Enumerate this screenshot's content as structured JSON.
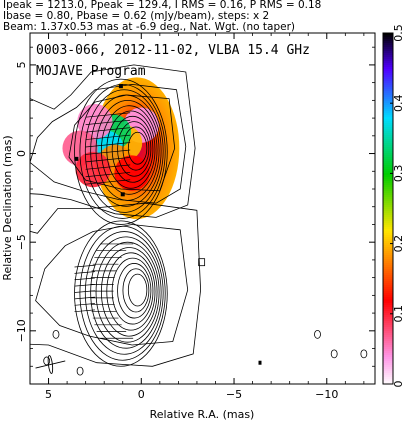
{
  "header": {
    "line1": "Ipeak = 1213.0, Ppeak = 129.4, I RMS = 0.16, P RMS = 0.18",
    "line2": "Ibase = 0.80, Pbase = 0.62 (mJy/beam), steps: x 2",
    "line3": "Beam: 1.37x0.53 mas at -6.9 deg., Nat. Wgt. (no taper)"
  },
  "chart_data": {
    "type": "heatmap",
    "title": "0003-066, 2012-11-02, VLBA 15.4 GHz",
    "subtitle": "MOJAVE Program",
    "xlabel": "Relative R.A. (mas)",
    "ylabel": "Relative Declination (mas)",
    "xlim": [
      6,
      -12.6
    ],
    "ylim": [
      -13,
      6.8
    ],
    "xticks": [
      5,
      0,
      -5,
      -10
    ],
    "yticks": [
      5,
      0,
      -5,
      -10
    ],
    "xtick_labels": [
      "5",
      "0",
      "−5",
      "−10"
    ],
    "ytick_labels": [
      "5",
      "0",
      "−5",
      "−10"
    ],
    "colorbar": {
      "range": [
        0,
        0.5
      ],
      "ticks": [
        0,
        0.1,
        0.2,
        0.3,
        0.4,
        0.5
      ],
      "tick_labels": [
        "0",
        "0.1",
        "0.2",
        "0.3",
        "0.4",
        "0.5"
      ]
    },
    "upper_panel": {
      "core": {
        "x": 0.2,
        "y": 0.3
      },
      "contour_levels": [
        1,
        2,
        4,
        8,
        16,
        32,
        64,
        128,
        256,
        512,
        1024
      ],
      "polarization_frac_patches": [
        {
          "x": 0.0,
          "y": 1.6,
          "value": 0.04
        },
        {
          "x": 0.9,
          "y": 0.6,
          "value": 0.2
        },
        {
          "x": 1.5,
          "y": 1.2,
          "value": 0.33
        },
        {
          "x": 1.9,
          "y": 0.3,
          "value": 0.38
        },
        {
          "x": 1.4,
          "y": -0.5,
          "value": 0.18
        },
        {
          "x": 2.5,
          "y": 1.8,
          "value": 0.05
        },
        {
          "x": 3.3,
          "y": 0.3,
          "value": 0.07
        },
        {
          "x": 2.6,
          "y": -0.9,
          "value": 0.1
        },
        {
          "x": 0.5,
          "y": -1.1,
          "value": 0.12
        }
      ]
    },
    "lower_panel": {
      "core": {
        "x": 0.2,
        "y": -7.7
      }
    }
  }
}
